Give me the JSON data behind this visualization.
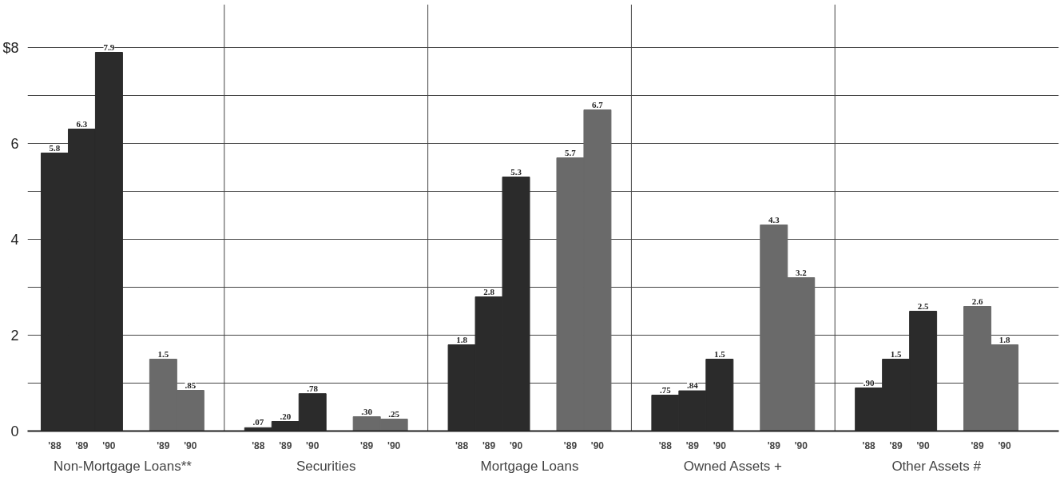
{
  "chart_data": {
    "type": "bar",
    "categories": [
      "'88",
      "'89",
      "'90",
      "'89",
      "'90",
      "'88",
      "'89",
      "'90",
      "'89",
      "'90",
      "'88",
      "'89",
      "'90",
      "'89",
      "'90",
      "'88",
      "'89",
      "'90",
      "'89",
      "'90",
      "'88",
      "'89",
      "'90",
      "'89",
      "'90"
    ],
    "values": [
      5.8,
      6.3,
      7.9,
      1.5,
      0.85,
      0.07,
      0.2,
      0.78,
      0.3,
      0.25,
      1.8,
      2.8,
      5.3,
      5.7,
      6.7,
      0.75,
      0.84,
      1.5,
      4.3,
      3.2,
      0.9,
      1.5,
      2.5,
      2.6,
      1.8
    ],
    "colors": [
      "#2b2b2b",
      "#2b2b2b",
      "#2b2b2b",
      "#6a6a6a",
      "#6a6a6a",
      "#2b2b2b",
      "#2b2b2b",
      "#2b2b2b",
      "#6a6a6a",
      "#6a6a6a",
      "#2b2b2b",
      "#2b2b2b",
      "#2b2b2b",
      "#6a6a6a",
      "#6a6a6a",
      "#2b2b2b",
      "#2b2b2b",
      "#2b2b2b",
      "#6a6a6a",
      "#6a6a6a",
      "#2b2b2b",
      "#2b2b2b",
      "#2b2b2b",
      "#6a6a6a",
      "#6a6a6a"
    ],
    "value_labels": [
      "5.8",
      "6.3",
      "7.9",
      "1.5",
      ".85",
      ".07",
      ".20",
      ".78",
      ".30",
      ".25",
      "1.8",
      "2.8",
      "5.3",
      "5.7",
      "6.7",
      ".75",
      ".84",
      "1.5",
      "4.3",
      "3.2",
      ".90",
      "1.5",
      "2.5",
      "2.6",
      "1.8"
    ],
    "annotations": [
      "Non-Mortgage Loans**",
      "Securities",
      "Mortgage Loans",
      "Owned Assets +",
      "Other Assets #"
    ],
    "ylim": [
      0,
      8.9
    ],
    "yticks": [
      0,
      {
        "value": 1,
        "label": null
      },
      2,
      {
        "value": 3,
        "label": null
      },
      4,
      {
        "value": 5,
        "label": null
      },
      6,
      {
        "value": 7,
        "label": null
      },
      {
        "value": 8,
        "label": "$8"
      }
    ],
    "grid": "y"
  }
}
